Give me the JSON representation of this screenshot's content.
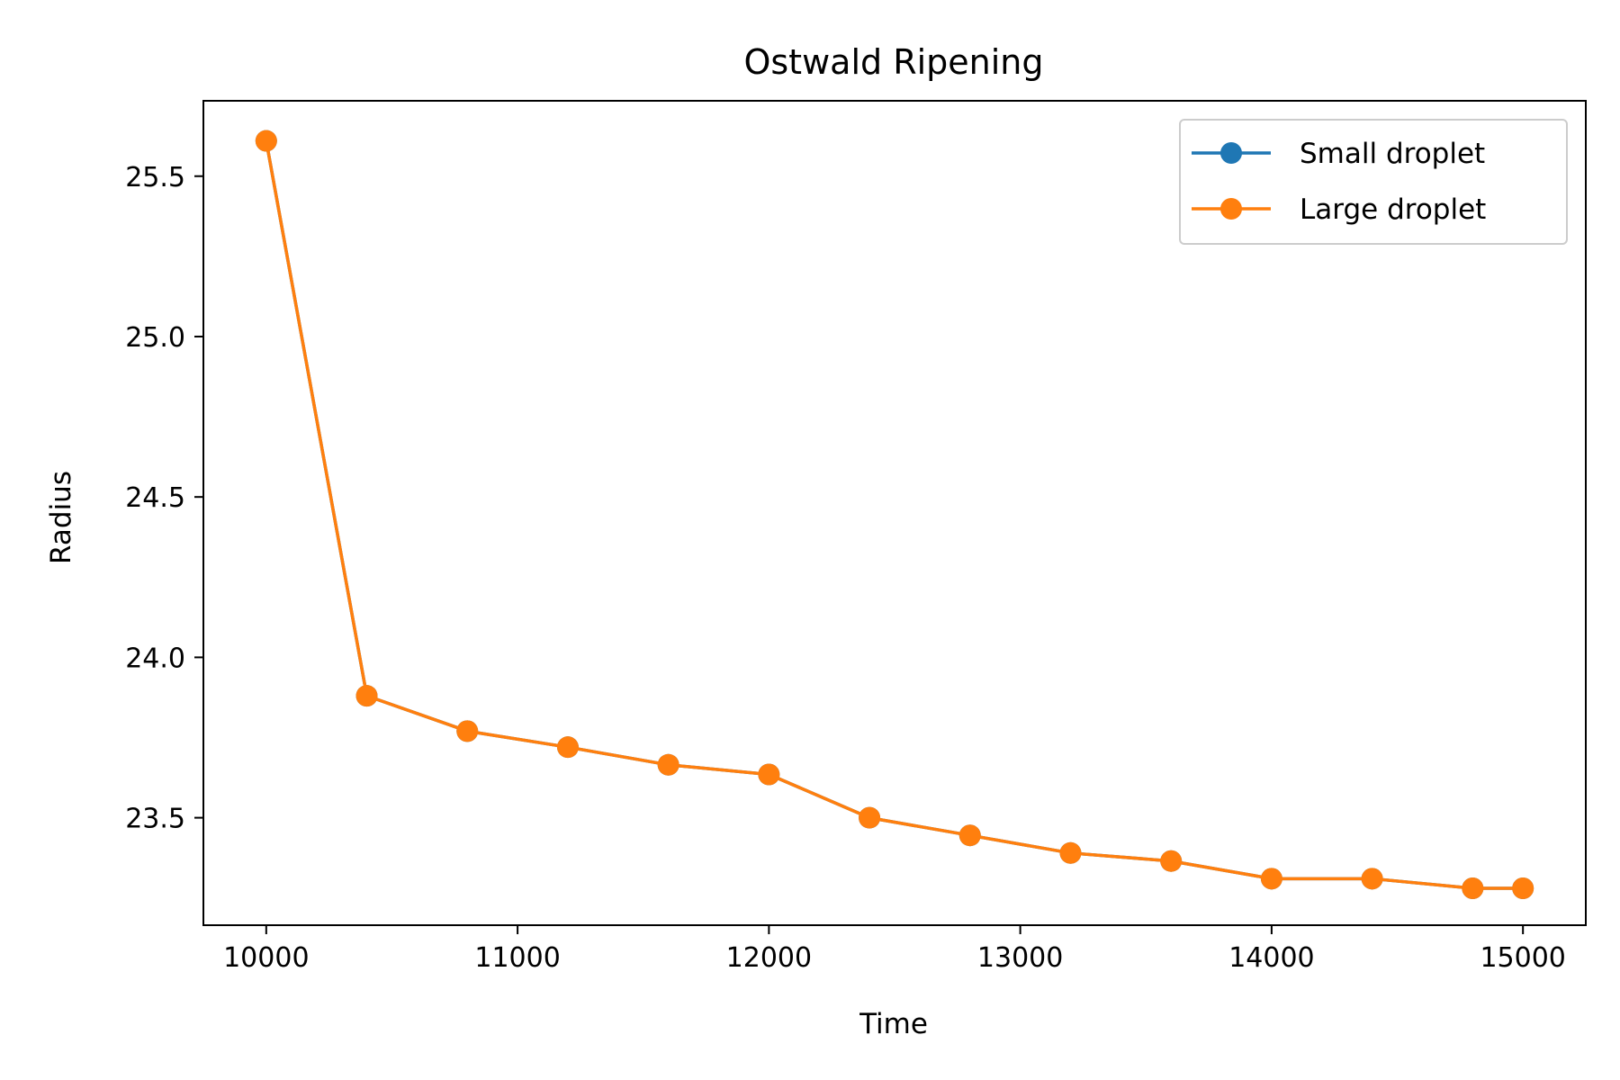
{
  "chart_data": {
    "type": "line",
    "title": "Ostwald Ripening",
    "xlabel": "Time",
    "ylabel": "Radius",
    "xlim": [
      9750,
      15250
    ],
    "ylim": [
      23.165,
      25.735
    ],
    "xticks": [
      10000,
      11000,
      12000,
      13000,
      14000,
      15000
    ],
    "yticks": [
      23.5,
      24.0,
      24.5,
      25.0,
      25.5
    ],
    "ytick_labels": [
      "23.5",
      "24.0",
      "24.5",
      "25.0",
      "25.5"
    ],
    "grid": false,
    "legend_position": "top-right",
    "x": [
      10000,
      10400,
      10800,
      11200,
      11600,
      12000,
      12400,
      12800,
      13200,
      13600,
      14000,
      14400,
      14800,
      15000
    ],
    "series": [
      {
        "name": "Small droplet",
        "color": "#1f77b4",
        "values": [
          25.61,
          23.88,
          23.77,
          23.72,
          23.665,
          23.635,
          23.5,
          23.445,
          23.39,
          23.365,
          23.31,
          23.31,
          23.28,
          23.28
        ]
      },
      {
        "name": "Large droplet",
        "color": "#ff7f0e",
        "values": [
          25.61,
          23.88,
          23.77,
          23.72,
          23.665,
          23.635,
          23.5,
          23.445,
          23.39,
          23.365,
          23.31,
          23.31,
          23.28,
          23.28
        ]
      }
    ]
  }
}
